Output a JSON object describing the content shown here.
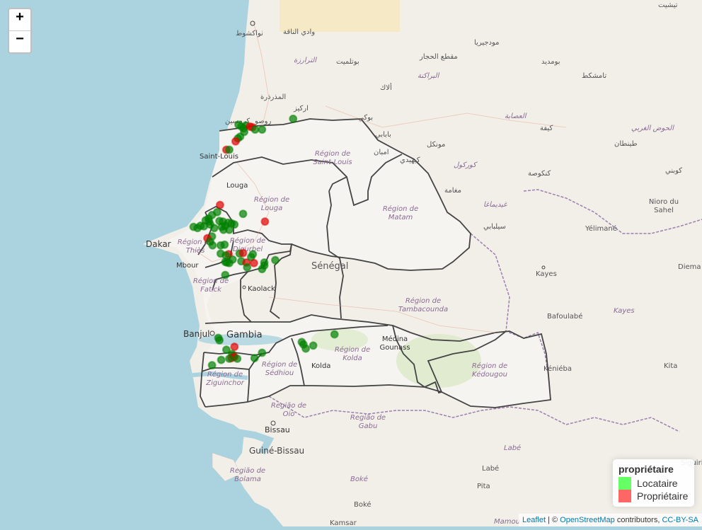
{
  "zoom": {
    "in_label": "+",
    "out_label": "−"
  },
  "legend": {
    "title": "propriétaire",
    "items": [
      {
        "label": "Locataire",
        "color": "#00ff00"
      },
      {
        "label": "Propriétaire",
        "color": "#ff0000"
      }
    ]
  },
  "attribution": {
    "leaflet": "Leaflet",
    "sep1": " | © ",
    "osm": "OpenStreetMap",
    "mid": " contributors, ",
    "license": "CC-BY-SA"
  },
  "colors": {
    "sea": "#aad3df",
    "land": "#f2efe9",
    "senegal": "#f7f6f3",
    "locataire": "#008000",
    "proprietaire": "#e00000"
  },
  "map_labels": {
    "nouakchott": "نواكشوط",
    "wadi_naga": "وادي الناقة",
    "tichit": "تيشيت",
    "moudjeria": "مودجيريا",
    "maqta": "مقطع الحجار",
    "boumdeid": "بومديد",
    "trarza": "الترارزة",
    "boutilimit": "بوتلميت",
    "brakna": "البراكنة",
    "tamchakett": "تامشكط",
    "aleg": "ألاك",
    "mederdra": "المذرذرة",
    "rkiz": "اركيز",
    "assaba": "العصابة",
    "hodh_gharbi": "الحوض الغربي",
    "kiffa": "كيفة",
    "tintane": "طينطان",
    "keur_macene": "كرمسين",
    "rosso": "روصو",
    "boghe": "بوكي",
    "babaabe": "بابابي",
    "mbagne": "امبان",
    "monguel": "مونكل",
    "kaedi": "كيهيدي",
    "gorgol": "كوركول",
    "kankossa": "كنكوصة",
    "kobenni": "كوبني",
    "maghama": "مغامة",
    "guidimakha": "غيدیماغا",
    "selibabi": "سيلبابي",
    "saint_louis": "Saint-Louis",
    "region_saint_louis": "Région de\nSaint-Louis",
    "louga": "Louga",
    "region_louga": "Région de\nLouga",
    "region_matam": "Région de\nMatam",
    "region_diourbel": "Région de\nDiourbel",
    "region_thies": "Région de\nThiès",
    "dakar": "Dakar",
    "mbour": "Mbour",
    "region_fatick": "Région de\nFatick",
    "kaolack": "Kaolack",
    "senegal": "Sénégal",
    "region_tambacounda": "Région de\nTambacounda",
    "banjul": "Banjul",
    "gambia": "Gambia",
    "medina_gounass": "Médina\nGounass",
    "region_kolda": "Région de\nKolda",
    "kolda": "Kolda",
    "region_sedhiou": "Région de\nSédhiou",
    "region_ziguinchor": "Région de\nZiguinchor",
    "region_kedougou": "Région de\nKédougou",
    "kenieba": "Kéniéba",
    "kita": "Kita",
    "kayes": "Kayes",
    "kayes_region": "Kayes",
    "bafoulabe": "Bafoulabé",
    "yelimane": "Yélimané",
    "nioro": "Nioro du\nSahel",
    "diema": "Diema",
    "region_oio": "Região de\nOio",
    "region_gabu": "Região de\nGabu",
    "bissau": "Bissau",
    "guinea_bissau": "Guiné-Bissau",
    "region_bolama": "Região de\nBolama",
    "labe_region": "Labé",
    "labe": "Labé",
    "pita": "Pita",
    "boke_region": "Boké",
    "boke": "Boké",
    "mamou": "Mamou",
    "kamsar": "Kamsar",
    "siguiri": "Siguiri"
  },
  "markers": [
    {
      "lon": -16.07,
      "lat": 16.58,
      "type": "Locataire"
    },
    {
      "lon": -16.02,
      "lat": 16.55,
      "type": "Locataire"
    },
    {
      "lon": -15.98,
      "lat": 16.52,
      "type": "Locataire"
    },
    {
      "lon": -15.94,
      "lat": 16.57,
      "type": "Locataire"
    },
    {
      "lon": -15.87,
      "lat": 16.55,
      "type": "Propriétaire"
    },
    {
      "lon": -15.83,
      "lat": 16.54,
      "type": "Propriétaire"
    },
    {
      "lon": -15.78,
      "lat": 16.5,
      "type": "Locataire"
    },
    {
      "lon": -15.66,
      "lat": 16.5,
      "type": "Locataire"
    },
    {
      "lon": -15.97,
      "lat": 16.46,
      "type": "Locataire"
    },
    {
      "lon": -16.04,
      "lat": 16.38,
      "type": "Locataire"
    },
    {
      "lon": -16.08,
      "lat": 16.35,
      "type": "Locataire"
    },
    {
      "lon": -16.12,
      "lat": 16.3,
      "type": "Propriétaire"
    },
    {
      "lon": -16.28,
      "lat": 16.16,
      "type": "Propriétaire"
    },
    {
      "lon": -16.23,
      "lat": 16.16,
      "type": "Locataire"
    },
    {
      "lon": -15.12,
      "lat": 16.68,
      "type": "Locataire"
    },
    {
      "lon": -16.39,
      "lat": 15.23,
      "type": "Propriétaire"
    },
    {
      "lon": -16.44,
      "lat": 15.11,
      "type": "Locataire"
    },
    {
      "lon": -16.53,
      "lat": 15.06,
      "type": "Locataire"
    },
    {
      "lon": -16.59,
      "lat": 15.0,
      "type": "Locataire"
    },
    {
      "lon": -16.64,
      "lat": 14.97,
      "type": "Locataire"
    },
    {
      "lon": -16.58,
      "lat": 14.95,
      "type": "Locataire"
    },
    {
      "lon": -16.4,
      "lat": 14.96,
      "type": "Locataire"
    },
    {
      "lon": -16.34,
      "lat": 14.95,
      "type": "Locataire"
    },
    {
      "lon": -16.25,
      "lat": 14.93,
      "type": "Locataire"
    },
    {
      "lon": -16.19,
      "lat": 14.92,
      "type": "Locataire"
    },
    {
      "lon": -16.14,
      "lat": 14.9,
      "type": "Locataire"
    },
    {
      "lon": -16.3,
      "lat": 14.88,
      "type": "Locataire"
    },
    {
      "lon": -16.36,
      "lat": 14.86,
      "type": "Locataire"
    },
    {
      "lon": -16.49,
      "lat": 14.84,
      "type": "Locataire"
    },
    {
      "lon": -16.56,
      "lat": 14.9,
      "type": "Locataire"
    },
    {
      "lon": -16.67,
      "lat": 14.87,
      "type": "Locataire"
    },
    {
      "lon": -16.73,
      "lat": 14.88,
      "type": "Locataire"
    },
    {
      "lon": -16.85,
      "lat": 14.86,
      "type": "Locataire"
    },
    {
      "lon": -16.78,
      "lat": 14.84,
      "type": "Locataire"
    },
    {
      "lon": -15.99,
      "lat": 15.08,
      "type": "Locataire"
    },
    {
      "lon": -15.61,
      "lat": 14.95,
      "type": "Propriétaire"
    },
    {
      "lon": -16.33,
      "lat": 14.81,
      "type": "Locataire"
    },
    {
      "lon": -16.23,
      "lat": 14.81,
      "type": "Locataire"
    },
    {
      "lon": -16.53,
      "lat": 14.7,
      "type": "Locataire"
    },
    {
      "lon": -16.61,
      "lat": 14.67,
      "type": "Propriétaire"
    },
    {
      "lon": -16.56,
      "lat": 14.61,
      "type": "Locataire"
    },
    {
      "lon": -16.52,
      "lat": 14.55,
      "type": "Locataire"
    },
    {
      "lon": -16.38,
      "lat": 14.55,
      "type": "Locataire"
    },
    {
      "lon": -16.31,
      "lat": 14.56,
      "type": "Locataire"
    },
    {
      "lon": -16.38,
      "lat": 14.41,
      "type": "Locataire"
    },
    {
      "lon": -16.24,
      "lat": 14.4,
      "type": "Propriétaire"
    },
    {
      "lon": -16.29,
      "lat": 14.38,
      "type": "Locataire"
    },
    {
      "lon": -16.17,
      "lat": 14.31,
      "type": "Locataire"
    },
    {
      "lon": -16.23,
      "lat": 14.25,
      "type": "Locataire"
    },
    {
      "lon": -16.3,
      "lat": 14.27,
      "type": "Locataire"
    },
    {
      "lon": -16.27,
      "lat": 14.26,
      "type": "Locataire"
    },
    {
      "lon": -16.05,
      "lat": 14.41,
      "type": "Locataire"
    },
    {
      "lon": -15.99,
      "lat": 14.42,
      "type": "Propriétaire"
    },
    {
      "lon": -16.02,
      "lat": 14.28,
      "type": "Locataire"
    },
    {
      "lon": -15.93,
      "lat": 14.26,
      "type": "Propriétaire"
    },
    {
      "lon": -15.85,
      "lat": 14.35,
      "type": "Locataire"
    },
    {
      "lon": -15.82,
      "lat": 14.4,
      "type": "Locataire"
    },
    {
      "lon": -15.92,
      "lat": 14.18,
      "type": "Locataire"
    },
    {
      "lon": -15.8,
      "lat": 14.25,
      "type": "Propriétaire"
    },
    {
      "lon": -15.62,
      "lat": 14.21,
      "type": "Locataire"
    },
    {
      "lon": -15.62,
      "lat": 14.26,
      "type": "Locataire"
    },
    {
      "lon": -15.43,
      "lat": 14.3,
      "type": "Locataire"
    },
    {
      "lon": -15.66,
      "lat": 14.15,
      "type": "Locataire"
    },
    {
      "lon": -16.3,
      "lat": 14.05,
      "type": "Locataire"
    },
    {
      "lon": -16.42,
      "lat": 12.99,
      "type": "Locataire"
    },
    {
      "lon": -16.4,
      "lat": 12.95,
      "type": "Locataire"
    },
    {
      "lon": -16.14,
      "lat": 12.84,
      "type": "Propriétaire"
    },
    {
      "lon": -16.28,
      "lat": 12.79,
      "type": "Locataire"
    },
    {
      "lon": -16.18,
      "lat": 12.72,
      "type": "Locataire"
    },
    {
      "lon": -16.16,
      "lat": 12.68,
      "type": "Locataire"
    },
    {
      "lon": -16.14,
      "lat": 12.67,
      "type": "Propriétaire"
    },
    {
      "lon": -16.19,
      "lat": 12.65,
      "type": "Propriétaire"
    },
    {
      "lon": -16.23,
      "lat": 12.64,
      "type": "Locataire"
    },
    {
      "lon": -16.09,
      "lat": 12.64,
      "type": "Locataire"
    },
    {
      "lon": -16.37,
      "lat": 12.62,
      "type": "Locataire"
    },
    {
      "lon": -16.53,
      "lat": 12.53,
      "type": "Locataire"
    },
    {
      "lon": -15.79,
      "lat": 12.65,
      "type": "Locataire"
    },
    {
      "lon": -15.66,
      "lat": 12.74,
      "type": "Locataire"
    },
    {
      "lon": -14.97,
      "lat": 12.92,
      "type": "Locataire"
    },
    {
      "lon": -14.94,
      "lat": 12.88,
      "type": "Locataire"
    },
    {
      "lon": -14.9,
      "lat": 12.81,
      "type": "Locataire"
    },
    {
      "lon": -14.77,
      "lat": 12.86,
      "type": "Locataire"
    },
    {
      "lon": -14.4,
      "lat": 13.05,
      "type": "Locataire"
    }
  ]
}
